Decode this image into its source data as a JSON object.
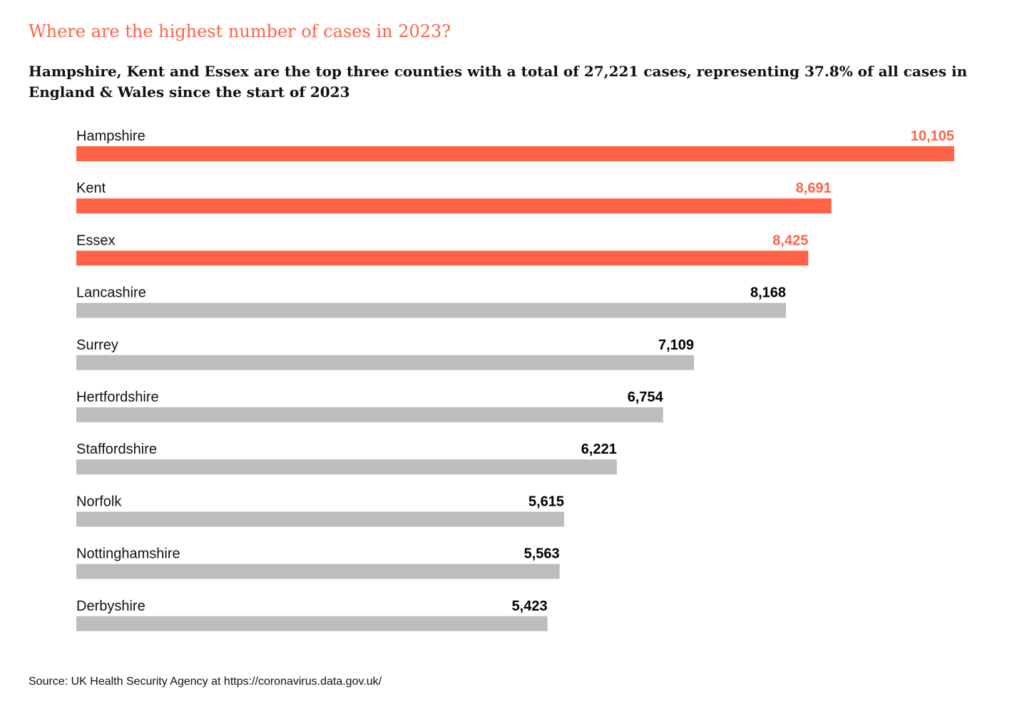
{
  "header": {
    "title": "Where are the highest number of cases in 2023?",
    "subtitle": "Hampshire, Kent and Essex are the top three counties with a total of 27,221 cases, representing 37.8% of all cases in England & Wales since the start of 2023"
  },
  "footer": {
    "source": "Source: UK Health Security Agency at https://coronavirus.data.gov.uk/"
  },
  "colors": {
    "highlight": "#ff6347",
    "default_bar": "#bdbdbd",
    "default_value": "#000000",
    "label": "#111111"
  },
  "chart_data": {
    "type": "bar",
    "orientation": "horizontal",
    "categories": [
      "Hampshire",
      "Kent",
      "Essex",
      "Lancashire",
      "Surrey",
      "Hertfordshire",
      "Staffordshire",
      "Norfolk",
      "Nottinghamshire",
      "Derbyshire"
    ],
    "values": [
      10105,
      8691,
      8425,
      8168,
      7109,
      6754,
      6221,
      5615,
      5563,
      5423
    ],
    "value_labels": [
      "10,105",
      "8,691",
      "8,425",
      "8,168",
      "7,109",
      "6,754",
      "6,221",
      "5,615",
      "5,563",
      "5,423"
    ],
    "highlighted": [
      true,
      true,
      true,
      false,
      false,
      false,
      false,
      false,
      false,
      false
    ],
    "title": "",
    "xlabel": "",
    "ylabel": "",
    "xlim": [
      0,
      10105
    ],
    "grid": false,
    "legend": "none"
  }
}
